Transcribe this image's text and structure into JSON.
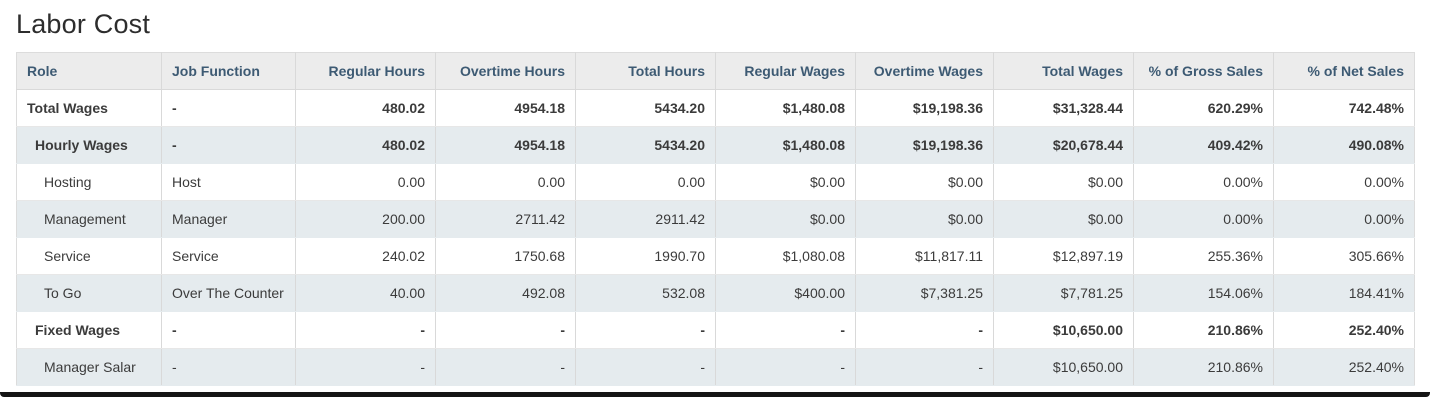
{
  "page": {
    "title": "Labor Cost"
  },
  "colors": {
    "header_bg": "#ececec",
    "header_text": "#3d5a73",
    "row_alt_bg": "#e5ebee",
    "body_text": "#3b3b3b",
    "border": "#d9d9d9",
    "bottom_bar": "#141414"
  },
  "table": {
    "columns": [
      {
        "label": "Role",
        "align": "left",
        "width": 145
      },
      {
        "label": "Job Function",
        "align": "left",
        "width": 134
      },
      {
        "label": "Regular Hours",
        "align": "right",
        "width": 140
      },
      {
        "label": "Overtime Hours",
        "align": "right",
        "width": 140
      },
      {
        "label": "Total Hours",
        "align": "right",
        "width": 140
      },
      {
        "label": "Regular Wages",
        "align": "right",
        "width": 140
      },
      {
        "label": "Overtime Wages",
        "align": "right",
        "width": 138
      },
      {
        "label": "Total Wages",
        "align": "right",
        "width": 140
      },
      {
        "label": "% of Gross Sales",
        "align": "right",
        "width": 140
      },
      {
        "label": "% of Net Sales",
        "align": "right",
        "width": 141
      }
    ],
    "rows": [
      {
        "bold": true,
        "indent": 0,
        "cells": [
          "Total Wages",
          "-",
          "480.02",
          "4954.18",
          "5434.20",
          "$1,480.08",
          "$19,198.36",
          "$31,328.44",
          "620.29%",
          "742.48%"
        ]
      },
      {
        "bold": true,
        "indent": 1,
        "cells": [
          "Hourly Wages",
          "-",
          "480.02",
          "4954.18",
          "5434.20",
          "$1,480.08",
          "$19,198.36",
          "$20,678.44",
          "409.42%",
          "490.08%"
        ]
      },
      {
        "bold": false,
        "indent": 2,
        "cells": [
          "Hosting",
          "Host",
          "0.00",
          "0.00",
          "0.00",
          "$0.00",
          "$0.00",
          "$0.00",
          "0.00%",
          "0.00%"
        ]
      },
      {
        "bold": false,
        "indent": 2,
        "cells": [
          "Management",
          "Manager",
          "200.00",
          "2711.42",
          "2911.42",
          "$0.00",
          "$0.00",
          "$0.00",
          "0.00%",
          "0.00%"
        ]
      },
      {
        "bold": false,
        "indent": 2,
        "cells": [
          "Service",
          "Service",
          "240.02",
          "1750.68",
          "1990.70",
          "$1,080.08",
          "$11,817.11",
          "$12,897.19",
          "255.36%",
          "305.66%"
        ]
      },
      {
        "bold": false,
        "indent": 2,
        "cells": [
          "To Go",
          "Over The Counter",
          "40.00",
          "492.08",
          "532.08",
          "$400.00",
          "$7,381.25",
          "$7,781.25",
          "154.06%",
          "184.41%"
        ]
      },
      {
        "bold": true,
        "indent": 1,
        "cells": [
          "Fixed Wages",
          "-",
          "-",
          "-",
          "-",
          "-",
          "-",
          "$10,650.00",
          "210.86%",
          "252.40%"
        ]
      },
      {
        "bold": false,
        "indent": 2,
        "cells": [
          "Manager Salar",
          "-",
          "-",
          "-",
          "-",
          "-",
          "-",
          "$10,650.00",
          "210.86%",
          "252.40%"
        ]
      }
    ]
  }
}
